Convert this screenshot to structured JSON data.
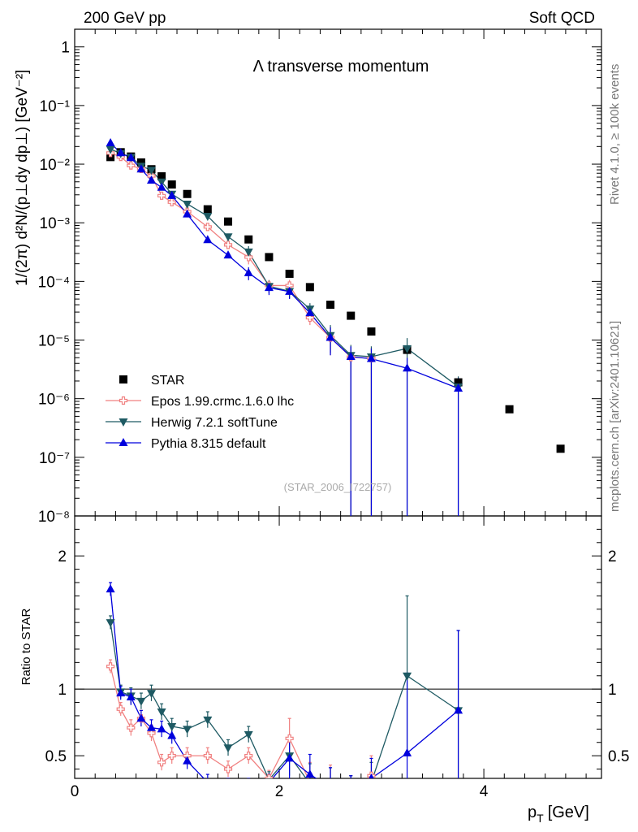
{
  "header": {
    "left": "200 GeV pp",
    "right": "Soft QCD"
  },
  "side_labels": {
    "rivet": "Rivet 4.1.0, ≥ 100k events",
    "url": "mcplots.cern.ch [arXiv:2401.10621]"
  },
  "chart_data": {
    "type": "scatter",
    "title": "Λ transverse momentum",
    "analysis_id": "(STAR_2006_I722757)",
    "xlabel_main": "p",
    "xlabel_sub": "T",
    "xlabel_unit": "[GeV]",
    "ylabel_main": "1/(2π)  d²N/(p⊥dy dp⊥) [GeV⁻²]",
    "ylabel_ratio": "Ratio to STAR",
    "xlim": [
      0,
      5.15
    ],
    "ylim_main": [
      1e-08,
      2
    ],
    "ylim_ratio": [
      0.33,
      2.3
    ],
    "x_ticks": [
      "0",
      "2",
      "4"
    ],
    "y_ticks_main": [
      "1",
      "10⁻¹",
      "10⁻²",
      "10⁻³",
      "10⁻⁴",
      "10⁻⁵",
      "10⁻⁶",
      "10⁻⁷",
      "10⁻⁸"
    ],
    "y_ticks_ratio": [
      "2",
      "1",
      "0.5"
    ],
    "legend": [
      "STAR",
      "Epos 1.99.crmc.1.6.0 lhc",
      "Herwig 7.2.1 softTune",
      "Pythia 8.315 default"
    ],
    "series": [
      {
        "name": "STAR",
        "color": "#000000",
        "marker": "square",
        "x": [
          0.35,
          0.45,
          0.55,
          0.65,
          0.75,
          0.85,
          0.95,
          1.1,
          1.3,
          1.5,
          1.7,
          1.9,
          2.1,
          2.3,
          2.5,
          2.7,
          2.9,
          3.25,
          3.75,
          4.25,
          4.75
        ],
        "y": [
          0.0132,
          0.016,
          0.0135,
          0.0107,
          0.0082,
          0.0062,
          0.0045,
          0.0031,
          0.0017,
          0.00105,
          0.00052,
          0.00026,
          0.000135,
          8e-05,
          4e-05,
          2.6e-05,
          1.4e-05,
          6.8e-06,
          1.9e-06,
          6.6e-07,
          1.4e-07
        ]
      },
      {
        "name": "Epos 1.99.crmc.1.6.0 lhc",
        "color": "#f08080",
        "marker": "open-cross",
        "x": [
          0.35,
          0.45,
          0.55,
          0.65,
          0.75,
          0.85,
          0.95,
          1.1,
          1.3,
          1.5,
          1.7,
          1.9,
          2.1,
          2.3,
          2.5,
          2.7,
          2.9
        ],
        "y": [
          0.0155,
          0.0133,
          0.0095,
          0.0083,
          0.0063,
          0.0029,
          0.00225,
          0.00155,
          0.00085,
          0.00042,
          0.00026,
          8.5e-05,
          8.5e-05,
          2.4e-05,
          1.1e-05,
          5.1e-06,
          4.9e-06
        ],
        "ratio": [
          1.17,
          0.85,
          0.71,
          0.78,
          0.67,
          0.45,
          0.5,
          0.5,
          0.5,
          0.4,
          0.5,
          0.33,
          0.63,
          0.3,
          0.28,
          0.2,
          0.35
        ]
      },
      {
        "name": "Herwig 7.2.1 softTune",
        "color": "#1e5a63",
        "marker": "triangle-down",
        "x": [
          0.35,
          0.45,
          0.55,
          0.65,
          0.75,
          0.85,
          0.95,
          1.1,
          1.3,
          1.5,
          1.7,
          1.9,
          2.1,
          2.3,
          2.5,
          2.7,
          2.9,
          3.25,
          3.75
        ],
        "y": [
          0.018,
          0.0153,
          0.0132,
          0.0093,
          0.0079,
          0.005,
          0.0031,
          0.0021,
          0.0013,
          0.00058,
          0.00032,
          8.3e-05,
          6.8e-05,
          3.4e-05,
          1.2e-05,
          5.5e-06,
          5.2e-06,
          7.2e-06,
          1.6e-06
        ],
        "ratio": [
          1.5,
          0.98,
          0.95,
          0.91,
          0.97,
          0.83,
          0.72,
          0.7,
          0.77,
          0.56,
          0.66,
          0.32,
          0.5,
          0.29,
          0.26,
          0.2,
          0.3,
          1.1,
          0.84
        ]
      },
      {
        "name": "Pythia 8.315 default",
        "color": "#0000dd",
        "marker": "triangle-up",
        "x": [
          0.35,
          0.45,
          0.55,
          0.65,
          0.75,
          0.85,
          0.95,
          1.1,
          1.3,
          1.5,
          1.7,
          1.9,
          2.1,
          2.3,
          2.5,
          2.7,
          2.9,
          3.25,
          3.75
        ],
        "y": [
          0.023,
          0.0155,
          0.0128,
          0.0082,
          0.0053,
          0.004,
          0.0029,
          0.0014,
          0.00051,
          0.00028,
          0.00014,
          7.8e-05,
          6.7e-05,
          2.9e-05,
          1.1e-05,
          5.2e-06,
          4.8e-06,
          3.3e-06,
          1.5e-06
        ],
        "ratio": [
          1.75,
          0.97,
          0.94,
          0.78,
          0.71,
          0.7,
          0.65,
          0.46,
          0.3,
          0.27,
          0.27,
          0.3,
          0.48,
          0.36,
          0.26,
          0.2,
          0.33,
          0.52,
          0.84
        ]
      }
    ]
  }
}
